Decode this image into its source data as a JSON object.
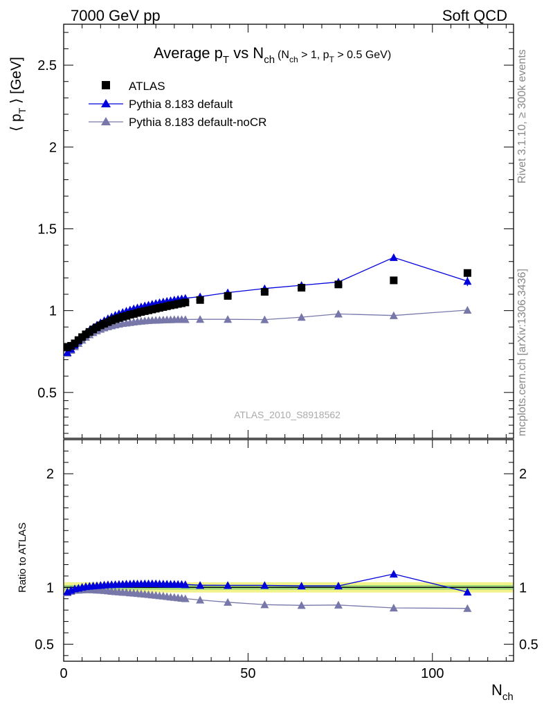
{
  "header": {
    "left": "7000 GeV pp",
    "right": "Soft QCD"
  },
  "side_labels": {
    "rivet": "Rivet 3.1.10, ≥ 300k events",
    "source": "mcplots.cern.ch [arXiv:1306.3436]"
  },
  "colors": {
    "data": "#000000",
    "default": "#0000dd",
    "nocr": "#7777aa",
    "band_outer": "#f2f28a",
    "band_inner": "#9ed87a"
  },
  "chart_data": {
    "type": "scatter",
    "title": {
      "main": "Average p",
      "sub1": "T",
      "mid": " vs N",
      "sub2": "ch",
      "cond": "(N",
      "csub1": "ch",
      "cond2": " > 1, p",
      "csub2": "T",
      "cond3": " > 0.5 GeV)"
    },
    "ylabel": {
      "pre": "⟨ p",
      "sub": "T",
      "post": " ⟩ [GeV]"
    },
    "xlabel": {
      "main": "N",
      "sub": "ch"
    },
    "ratio_ylabel": "Ratio to ATLAS",
    "analysis": "ATLAS_2010_S8918562",
    "xlim": [
      0,
      122
    ],
    "ylim": [
      0.22,
      2.75
    ],
    "ratio_ylim": [
      0.35,
      2.3
    ],
    "x_ticks": [
      "0",
      "50",
      "100"
    ],
    "y_ticks": [
      "0.5",
      "1",
      "1.5",
      "2",
      "2.5"
    ],
    "ratio_y_ticks": [
      "0.5",
      "1",
      "2"
    ],
    "legend": [
      "ATLAS",
      "Pythia 8.183 default",
      "Pythia 8.183 default-noCR"
    ],
    "series": [
      {
        "name": "ATLAS",
        "marker": "square",
        "x": [
          1,
          2,
          3,
          4,
          5,
          6,
          7,
          8,
          9,
          10,
          11,
          12,
          13,
          14,
          15,
          16,
          17,
          18,
          19,
          20,
          21,
          22,
          23,
          24,
          25,
          26,
          27,
          28,
          29,
          30,
          31,
          32,
          33,
          37,
          44.5,
          54.5,
          64.5,
          74.5,
          89.5,
          109.5
        ],
        "y": [
          0.775,
          0.785,
          0.8,
          0.82,
          0.838,
          0.855,
          0.87,
          0.885,
          0.898,
          0.91,
          0.92,
          0.93,
          0.94,
          0.948,
          0.955,
          0.962,
          0.968,
          0.975,
          0.98,
          0.986,
          0.992,
          0.997,
          1.002,
          1.007,
          1.012,
          1.017,
          1.022,
          1.027,
          1.032,
          1.036,
          1.041,
          1.045,
          1.05,
          1.065,
          1.09,
          1.115,
          1.14,
          1.16,
          1.185,
          1.23
        ]
      },
      {
        "name": "Pythia 8.183 default",
        "marker": "triangle",
        "x": [
          1,
          2,
          3,
          4,
          5,
          6,
          7,
          8,
          9,
          10,
          11,
          12,
          13,
          14,
          15,
          16,
          17,
          18,
          19,
          20,
          21,
          22,
          23,
          24,
          25,
          26,
          27,
          28,
          29,
          30,
          31,
          32,
          33,
          37,
          44.5,
          54.5,
          64.5,
          74.5,
          89.5,
          109.5
        ],
        "y": [
          0.745,
          0.765,
          0.79,
          0.815,
          0.84,
          0.862,
          0.88,
          0.897,
          0.912,
          0.927,
          0.94,
          0.952,
          0.963,
          0.973,
          0.982,
          0.99,
          0.998,
          1.005,
          1.012,
          1.018,
          1.024,
          1.03,
          1.035,
          1.04,
          1.045,
          1.05,
          1.054,
          1.058,
          1.062,
          1.066,
          1.07,
          1.073,
          1.076,
          1.085,
          1.11,
          1.135,
          1.155,
          1.175,
          1.325,
          1.18
        ],
        "err": [
          0,
          0,
          0,
          0,
          0,
          0,
          0,
          0,
          0,
          0,
          0,
          0,
          0,
          0,
          0,
          0,
          0,
          0,
          0,
          0,
          0,
          0,
          0,
          0,
          0,
          0,
          0,
          0,
          0,
          0,
          0,
          0,
          0,
          0,
          0,
          0,
          0,
          0.01,
          0.02,
          0.03
        ]
      },
      {
        "name": "Pythia 8.183 default-noCR",
        "marker": "triangle",
        "x": [
          1,
          2,
          3,
          4,
          5,
          6,
          7,
          8,
          9,
          10,
          11,
          12,
          13,
          14,
          15,
          16,
          17,
          18,
          19,
          20,
          21,
          22,
          23,
          24,
          25,
          26,
          27,
          28,
          29,
          30,
          31,
          32,
          33,
          37,
          44.5,
          54.5,
          64.5,
          74.5,
          89.5,
          109.5
        ],
        "y": [
          0.74,
          0.758,
          0.78,
          0.8,
          0.82,
          0.838,
          0.853,
          0.866,
          0.877,
          0.887,
          0.895,
          0.902,
          0.908,
          0.913,
          0.918,
          0.922,
          0.925,
          0.928,
          0.931,
          0.934,
          0.936,
          0.938,
          0.94,
          0.941,
          0.942,
          0.943,
          0.944,
          0.945,
          0.945,
          0.946,
          0.946,
          0.946,
          0.946,
          0.947,
          0.947,
          0.945,
          0.96,
          0.98,
          0.97,
          1.003
        ]
      }
    ],
    "ratio": {
      "default": [
        0.962,
        0.975,
        0.988,
        0.994,
        1.002,
        1.008,
        1.011,
        1.014,
        1.016,
        1.019,
        1.022,
        1.024,
        1.025,
        1.026,
        1.028,
        1.029,
        1.031,
        1.031,
        1.033,
        1.032,
        1.032,
        1.033,
        1.033,
        1.033,
        1.033,
        1.032,
        1.031,
        1.03,
        1.029,
        1.029,
        1.028,
        1.027,
        1.025,
        1.019,
        1.018,
        1.018,
        1.013,
        1.013,
        1.118,
        0.959
      ],
      "nocr": [
        0.955,
        0.966,
        0.975,
        0.976,
        0.979,
        0.98,
        0.981,
        0.979,
        0.977,
        0.975,
        0.973,
        0.97,
        0.966,
        0.963,
        0.961,
        0.958,
        0.956,
        0.952,
        0.95,
        0.947,
        0.944,
        0.941,
        0.938,
        0.934,
        0.931,
        0.927,
        0.924,
        0.92,
        0.916,
        0.913,
        0.909,
        0.905,
        0.901,
        0.889,
        0.869,
        0.848,
        0.842,
        0.845,
        0.819,
        0.815
      ]
    }
  }
}
